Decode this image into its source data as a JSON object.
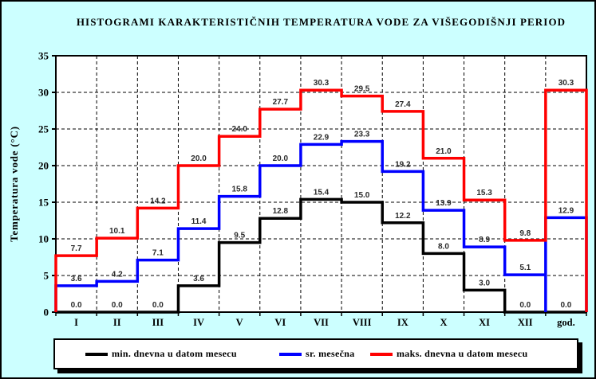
{
  "title": "HISTOGRAMI KARAKTERISTIČNIH TEMPERATURA VODE ZA VIŠEGODIŠNJI PERIOD",
  "chart_data": {
    "type": "line",
    "subtype": "step-histogram",
    "categories": [
      "I",
      "II",
      "III",
      "IV",
      "V",
      "VI",
      "VII",
      "VIII",
      "IX",
      "X",
      "XI",
      "XII",
      "god."
    ],
    "series": [
      {
        "name": "min. dnevna u datom mesecu",
        "color": "#000000",
        "values": [
          0.0,
          0.0,
          0.0,
          3.6,
          9.5,
          12.8,
          15.4,
          15.0,
          12.2,
          8.0,
          3.0,
          0.0,
          0.0
        ]
      },
      {
        "name": "sr. mesečna",
        "color": "#0000ff",
        "values": [
          3.6,
          4.2,
          7.1,
          11.4,
          15.8,
          20.0,
          22.9,
          23.3,
          19.2,
          13.9,
          8.9,
          5.1,
          12.9
        ]
      },
      {
        "name": "maks. dnevna u datom mesecu",
        "color": "#ff0000",
        "values": [
          7.7,
          10.1,
          14.2,
          20.0,
          24.0,
          27.7,
          30.3,
          29.5,
          27.4,
          21.0,
          15.3,
          9.8,
          30.3
        ]
      }
    ],
    "xlabel": "",
    "ylabel": "Temperatura vode (°C)",
    "ylim": [
      0,
      35
    ],
    "yticks": [
      0,
      5,
      10,
      15,
      20,
      25,
      30,
      35
    ],
    "grid": true,
    "value_labels_shown": true,
    "legend_position": "bottom"
  },
  "colors": {
    "background": "#ccffff",
    "plot_background": "#ffffff",
    "grid": "#000000",
    "axis": "#000000",
    "value_label": "#2b2b2b"
  }
}
